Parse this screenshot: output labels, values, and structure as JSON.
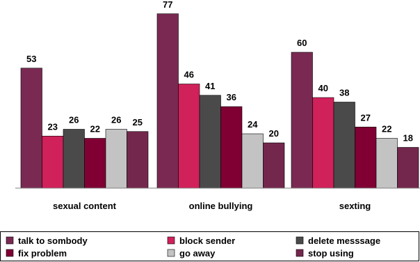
{
  "chart_data": {
    "type": "bar",
    "title": "",
    "xlabel": "",
    "ylabel": "",
    "ylim": [
      0,
      80
    ],
    "grid": false,
    "legend_position": "bottom",
    "categories": [
      "sexual content",
      "online bullying",
      "sexting"
    ],
    "series": [
      {
        "name": "talk to sombody",
        "color": "#7a2a52",
        "values": [
          53,
          77,
          60
        ]
      },
      {
        "name": "block sender",
        "color": "#d0215a",
        "values": [
          23,
          46,
          40
        ]
      },
      {
        "name": "delete messsage",
        "color": "#4a4a4a",
        "values": [
          26,
          41,
          38
        ]
      },
      {
        "name": "fix problem",
        "color": "#800033",
        "values": [
          22,
          36,
          27
        ]
      },
      {
        "name": "go away",
        "color": "#c3c3c3",
        "values": [
          26,
          24,
          22
        ]
      },
      {
        "name": "stop using",
        "color": "#74274d",
        "values": [
          25,
          20,
          18
        ]
      }
    ]
  }
}
